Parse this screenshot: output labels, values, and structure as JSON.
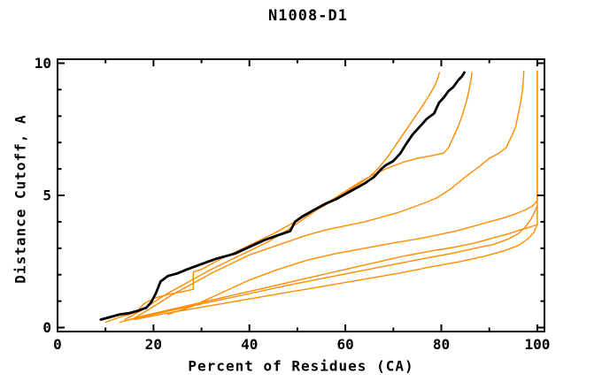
{
  "figure": {
    "background": "#ffffff"
  },
  "chart_data": {
    "type": "line",
    "title": "N1008-D1",
    "xlabel": "Percent of Residues (CA)",
    "ylabel": "Distance Cutoff, A",
    "xlim": [
      0,
      101.5
    ],
    "ylim": [
      -0.15,
      10.15
    ],
    "grid": false,
    "legend": "none",
    "x_ticks": {
      "major": [
        0,
        20,
        40,
        60,
        80,
        100
      ],
      "labels": [
        "0",
        "20",
        "40",
        "60",
        "80",
        "100"
      ],
      "minor": [
        10,
        30,
        50,
        70,
        90
      ]
    },
    "y_ticks": {
      "major": [
        0,
        5,
        10
      ],
      "labels": [
        "0",
        "5",
        "10"
      ],
      "minor": [
        1,
        2,
        3,
        4,
        6,
        7,
        8,
        9
      ]
    },
    "colors": {
      "highlight": "#000000",
      "model": "#ff8c00",
      "frame": "#000000"
    },
    "series": [
      {
        "name": "model-orange-1",
        "color_role": "model",
        "width": 1.4,
        "points": [
          [
            10,
            0.2
          ],
          [
            13,
            0.4
          ],
          [
            15,
            0.5
          ],
          [
            16.5,
            0.6
          ],
          [
            18,
            0.9
          ],
          [
            20,
            1.1
          ],
          [
            23,
            1.25
          ],
          [
            26,
            1.35
          ],
          [
            28.3,
            1.45
          ],
          [
            28.3,
            2.1
          ],
          [
            30,
            2.2
          ],
          [
            33,
            2.5
          ],
          [
            37,
            2.85
          ],
          [
            41,
            3.2
          ],
          [
            45,
            3.55
          ],
          [
            49,
            3.95
          ],
          [
            53,
            4.35
          ],
          [
            57,
            4.75
          ],
          [
            60,
            5.1
          ],
          [
            63,
            5.45
          ],
          [
            65,
            5.7
          ],
          [
            67,
            6.05
          ],
          [
            69,
            6.5
          ],
          [
            70.5,
            6.9
          ],
          [
            72,
            7.3
          ],
          [
            73.5,
            7.7
          ],
          [
            75,
            8.1
          ],
          [
            76.5,
            8.5
          ],
          [
            77.5,
            8.8
          ],
          [
            78.5,
            9.1
          ],
          [
            79.2,
            9.4
          ],
          [
            79.6,
            9.65
          ]
        ]
      },
      {
        "name": "model-orange-2",
        "color_role": "model",
        "width": 1.4,
        "points": [
          [
            14,
            0.3
          ],
          [
            17,
            0.6
          ],
          [
            20,
            0.95
          ],
          [
            23,
            1.3
          ],
          [
            26,
            1.6
          ],
          [
            29,
            1.9
          ],
          [
            32,
            2.2
          ],
          [
            36,
            2.55
          ],
          [
            40,
            2.9
          ],
          [
            44,
            3.25
          ],
          [
            48,
            3.7
          ],
          [
            52,
            4.2
          ],
          [
            56,
            4.7
          ],
          [
            60,
            5.15
          ],
          [
            63,
            5.5
          ],
          [
            66,
            5.8
          ],
          [
            69,
            6.05
          ],
          [
            72,
            6.25
          ],
          [
            75,
            6.4
          ],
          [
            78,
            6.5
          ],
          [
            80.5,
            6.6
          ],
          [
            81.5,
            6.8
          ],
          [
            82.5,
            7.2
          ],
          [
            83.5,
            7.6
          ],
          [
            84.5,
            8.1
          ],
          [
            85.3,
            8.6
          ],
          [
            85.8,
            9.0
          ],
          [
            86.2,
            9.4
          ],
          [
            86.4,
            9.65
          ]
        ]
      },
      {
        "name": "model-orange-3",
        "color_role": "model",
        "width": 1.4,
        "points": [
          [
            16,
            0.35
          ],
          [
            20,
            0.8
          ],
          [
            24,
            1.25
          ],
          [
            28,
            1.65
          ],
          [
            32,
            2.05
          ],
          [
            36,
            2.4
          ],
          [
            40,
            2.75
          ],
          [
            44,
            3.0
          ],
          [
            48,
            3.25
          ],
          [
            52,
            3.5
          ],
          [
            56,
            3.7
          ],
          [
            60,
            3.85
          ],
          [
            64,
            4.0
          ],
          [
            68,
            4.2
          ],
          [
            71,
            4.35
          ],
          [
            74,
            4.55
          ],
          [
            77,
            4.75
          ],
          [
            79,
            4.9
          ],
          [
            82,
            5.25
          ],
          [
            85,
            5.7
          ],
          [
            88,
            6.1
          ],
          [
            90,
            6.4
          ],
          [
            92,
            6.6
          ],
          [
            93.5,
            6.8
          ],
          [
            94.8,
            7.3
          ],
          [
            95.5,
            7.6
          ],
          [
            95.9,
            7.95
          ],
          [
            96.5,
            8.5
          ],
          [
            96.9,
            8.95
          ],
          [
            97.1,
            9.4
          ],
          [
            97.2,
            9.7
          ]
        ]
      },
      {
        "name": "model-orange-4",
        "color_role": "model",
        "width": 1.4,
        "points": [
          [
            23,
            0.5
          ],
          [
            28,
            0.8
          ],
          [
            34,
            1.3
          ],
          [
            40,
            1.8
          ],
          [
            46,
            2.2
          ],
          [
            52,
            2.55
          ],
          [
            58,
            2.8
          ],
          [
            64,
            3.0
          ],
          [
            70,
            3.2
          ],
          [
            75,
            3.35
          ],
          [
            79,
            3.5
          ],
          [
            83,
            3.65
          ],
          [
            87,
            3.85
          ],
          [
            90,
            4.0
          ],
          [
            93,
            4.15
          ],
          [
            95.5,
            4.3
          ],
          [
            97.5,
            4.45
          ],
          [
            99,
            4.6
          ],
          [
            100,
            4.8
          ],
          [
            100,
            9.7
          ]
        ]
      },
      {
        "name": "model-orange-5",
        "color_role": "model",
        "width": 1.4,
        "points": [
          [
            13,
            0.2
          ],
          [
            18,
            0.45
          ],
          [
            24,
            0.7
          ],
          [
            30,
            0.95
          ],
          [
            36,
            1.2
          ],
          [
            42,
            1.45
          ],
          [
            48,
            1.7
          ],
          [
            54,
            1.95
          ],
          [
            60,
            2.2
          ],
          [
            66,
            2.45
          ],
          [
            72,
            2.7
          ],
          [
            78,
            2.9
          ],
          [
            83,
            3.05
          ],
          [
            87,
            3.2
          ],
          [
            91,
            3.4
          ],
          [
            94,
            3.55
          ],
          [
            96.5,
            3.7
          ],
          [
            98.5,
            3.8
          ],
          [
            100,
            3.9
          ],
          [
            100,
            9.7
          ]
        ]
      },
      {
        "name": "model-orange-6",
        "color_role": "model",
        "width": 1.4,
        "points": [
          [
            14,
            0.25
          ],
          [
            20,
            0.5
          ],
          [
            27,
            0.78
          ],
          [
            34,
            1.05
          ],
          [
            41,
            1.32
          ],
          [
            48,
            1.6
          ],
          [
            55,
            1.85
          ],
          [
            62,
            2.1
          ],
          [
            69,
            2.35
          ],
          [
            76,
            2.6
          ],
          [
            82,
            2.8
          ],
          [
            87,
            3.0
          ],
          [
            91,
            3.15
          ],
          [
            94,
            3.35
          ],
          [
            96,
            3.55
          ],
          [
            97.5,
            3.8
          ],
          [
            98.7,
            4.1
          ],
          [
            99.5,
            4.4
          ],
          [
            100,
            4.6
          ]
        ]
      },
      {
        "name": "model-orange-7",
        "color_role": "model",
        "width": 1.4,
        "points": [
          [
            16,
            0.3
          ],
          [
            23,
            0.55
          ],
          [
            31,
            0.8
          ],
          [
            39,
            1.05
          ],
          [
            47,
            1.3
          ],
          [
            55,
            1.55
          ],
          [
            63,
            1.8
          ],
          [
            71,
            2.05
          ],
          [
            78,
            2.3
          ],
          [
            84,
            2.5
          ],
          [
            89,
            2.7
          ],
          [
            93,
            2.9
          ],
          [
            96,
            3.1
          ],
          [
            98,
            3.35
          ],
          [
            99.3,
            3.6
          ],
          [
            100,
            3.9
          ]
        ]
      },
      {
        "name": "highlighted-model-black",
        "color_role": "highlight",
        "width": 2.8,
        "points": [
          [
            9,
            0.3
          ],
          [
            11,
            0.4
          ],
          [
            13,
            0.5
          ],
          [
            15,
            0.55
          ],
          [
            17,
            0.65
          ],
          [
            18.5,
            0.75
          ],
          [
            19.5,
            0.95
          ],
          [
            20.5,
            1.3
          ],
          [
            21.5,
            1.75
          ],
          [
            23,
            1.95
          ],
          [
            25,
            2.05
          ],
          [
            27,
            2.2
          ],
          [
            30,
            2.4
          ],
          [
            33,
            2.6
          ],
          [
            35,
            2.7
          ],
          [
            37,
            2.8
          ],
          [
            40,
            3.05
          ],
          [
            43,
            3.3
          ],
          [
            46,
            3.5
          ],
          [
            48.5,
            3.65
          ],
          [
            49.5,
            4.0
          ],
          [
            51,
            4.2
          ],
          [
            53,
            4.4
          ],
          [
            56,
            4.7
          ],
          [
            58,
            4.85
          ],
          [
            60,
            5.05
          ],
          [
            62,
            5.25
          ],
          [
            64,
            5.45
          ],
          [
            66,
            5.7
          ],
          [
            67.5,
            6.0
          ],
          [
            68.5,
            6.15
          ],
          [
            70,
            6.3
          ],
          [
            71.5,
            6.6
          ],
          [
            72.5,
            6.9
          ],
          [
            74,
            7.3
          ],
          [
            75.5,
            7.6
          ],
          [
            77,
            7.9
          ],
          [
            78.5,
            8.1
          ],
          [
            79.5,
            8.5
          ],
          [
            80.5,
            8.7
          ],
          [
            81.5,
            8.95
          ],
          [
            82.5,
            9.1
          ],
          [
            83.5,
            9.35
          ],
          [
            84.3,
            9.5
          ],
          [
            84.8,
            9.65
          ]
        ]
      }
    ]
  }
}
